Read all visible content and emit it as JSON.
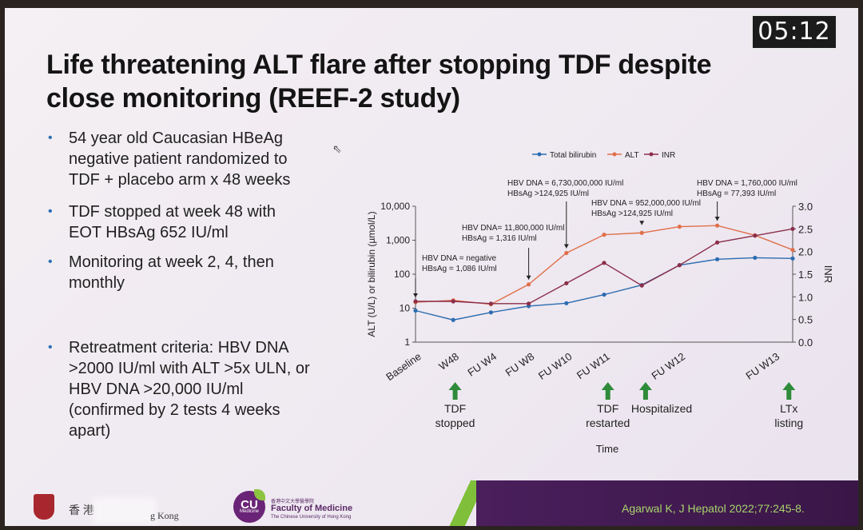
{
  "timer": "05:12",
  "title": "Life threatening ALT flare after stopping TDF despite close monitoring (REEF-2 study)",
  "bullets": [
    "54 year old Caucasian HBeAg negative patient randomized to TDF + placebo arm x 48 weeks",
    "TDF stopped at week 48 with EOT HBsAg 652 IU/ml",
    "Monitoring at week 2, 4, then monthly",
    "Retreatment criteria: HBV DNA >2000 IU/ml with ALT >5x ULN, or HBV DNA >20,000 IU/ml (confirmed by 2 tests 4 weeks apart)"
  ],
  "footer": {
    "citation": "Agarwal K, J Hepatol 2022;77:245-8.",
    "hku_text": "香 港",
    "hku_tail": "g Kong",
    "cu_logo": "CU",
    "cu_logo_sub": "Medicine",
    "faculty_cn": "香港中文大學醫學院",
    "faculty_name": "Faculty of Medicine",
    "faculty_sub": "The Chinese University of Hong Kong"
  },
  "colors": {
    "bilirubin": "#2b6cb0",
    "alt": "#e0704a",
    "inr": "#8b2e4a",
    "arrow": "#2e8b3a",
    "footer_bar": "#4a1f5c",
    "citation": "#a6d46a"
  },
  "chart_data": {
    "type": "line",
    "categories": [
      "Baseline",
      "W48",
      "FU W4",
      "FU W8",
      "FU W10",
      "FU W11",
      "FU W12",
      "FU W13"
    ],
    "x": [
      0,
      1,
      2,
      3,
      4,
      5,
      6,
      7,
      8,
      9,
      10
    ],
    "series": [
      {
        "name": "Total bilirubin",
        "axis": "left",
        "values": [
          8.5,
          4.5,
          7.5,
          11.5,
          14,
          25,
          48,
          185,
          275,
          305,
          290
        ]
      },
      {
        "name": "ALT",
        "axis": "left",
        "values": [
          15,
          17,
          13,
          50,
          420,
          1450,
          1650,
          2500,
          2700,
          1400,
          520
        ]
      },
      {
        "name": "INR",
        "axis": "right",
        "values": [
          0.9,
          0.9,
          0.85,
          0.85,
          1.3,
          1.75,
          1.25,
          1.7,
          2.2,
          2.35,
          2.5
        ]
      }
    ],
    "ylabel": "ALT (U/L) or bilirubin (µmol/L)",
    "y2label": "INR",
    "xlabel": "Time",
    "yscale": "log",
    "ylim": [
      1,
      10000
    ],
    "yticks": [
      "1",
      "10",
      "100",
      "1,000",
      "10,000"
    ],
    "y2lim": [
      0,
      3
    ],
    "y2ticks": [
      "0.0",
      "0.5",
      "1.0",
      "1.5",
      "2.0",
      "2.5",
      "3.0"
    ],
    "legend": "top",
    "annotations": [
      {
        "lines": [
          "HBV DNA = negative",
          "HBsAg = 1,086 IU/ml"
        ],
        "x": 0
      },
      {
        "lines": [
          "HBV DNA= 11,800,000 IU/ml",
          "HBsAg = 1,316 IU/ml"
        ],
        "x": 3
      },
      {
        "lines": [
          "HBV DNA = 6,730,000,000 IU/ml",
          "HBsAg >124,925 IU/ml"
        ],
        "x": 4
      },
      {
        "lines": [
          "HBV DNA = 952,000,000 IU/ml",
          "HBsAg >124,925 IU/ml"
        ],
        "x": 6
      },
      {
        "lines": [
          "HBV DNA = 1,760,000 IU/ml",
          "HBsAg = 77,393 IU/ml"
        ],
        "x": 8
      }
    ],
    "events": [
      {
        "lines": [
          "TDF",
          "stopped"
        ],
        "x": 1
      },
      {
        "lines": [
          "TDF",
          "restarted"
        ],
        "x": 5
      },
      {
        "lines": [
          "Hospitalized"
        ],
        "x": 6
      },
      {
        "lines": [
          "LTx",
          "listing"
        ],
        "x": 10
      }
    ]
  }
}
